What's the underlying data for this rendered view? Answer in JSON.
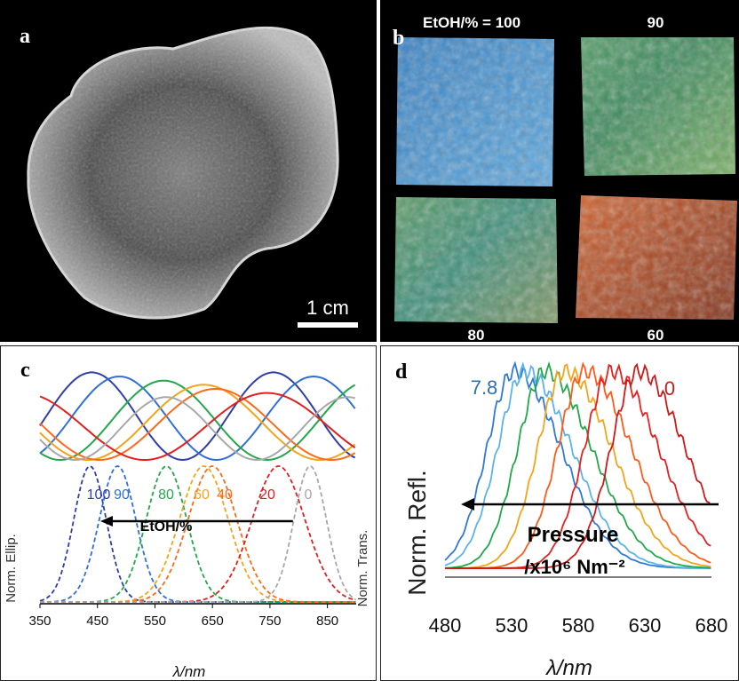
{
  "panel_a": {
    "label": "a",
    "scale_bar_label": "1 cm"
  },
  "panel_b": {
    "label": "b",
    "sample_labels": [
      "EtOH/% = 100",
      "90",
      "80",
      "60"
    ],
    "swatch_colors": [
      [
        "#2a78c0",
        "#5aa8e0",
        "#3a6fb8"
      ],
      [
        "#7ec57a",
        "#3a8a5c",
        "#b9d86a"
      ],
      [
        "#88b040",
        "#3a8f7a",
        "#d8a040"
      ],
      [
        "#c04520",
        "#e06a30",
        "#7a2a14"
      ]
    ]
  },
  "panel_c": {
    "label": "c"
  },
  "panel_d": {
    "label": "d"
  },
  "chart_data": [
    {
      "type": "line",
      "panel": "c",
      "xlabel": "λ/nm",
      "ylabel_left": "Norm. Ellip.",
      "ylabel_right": "Norm. Trans.",
      "xlim": [
        350,
        900
      ],
      "xticks": [
        350,
        450,
        550,
        650,
        750,
        850
      ],
      "annotation_text": "EtOH/%",
      "arrow": {
        "from": 790,
        "to": 455
      },
      "series": [
        {
          "name": "100",
          "color": "#2f3ea8",
          "ellip_min": 440,
          "peak": 437,
          "width": 40
        },
        {
          "name": "90",
          "color": "#2f6fd6",
          "ellip_min": 488,
          "peak": 485,
          "width": 45
        },
        {
          "name": "80",
          "color": "#21a84a",
          "ellip_min": 565,
          "peak": 570,
          "width": 50
        },
        {
          "name": "60",
          "color": "#f2a51a",
          "ellip_min": 635,
          "peak": 635,
          "width": 60
        },
        {
          "name": "40",
          "color": "#ff6a1a",
          "ellip_min": 655,
          "peak": 650,
          "width": 60
        },
        {
          "name": "20",
          "color": "#e02020",
          "ellip_min": 745,
          "peak": 765,
          "width": 65
        },
        {
          "name": "0",
          "color": "#a8a8a8",
          "ellip_min": 885,
          "peak": 820,
          "width": 40
        }
      ]
    },
    {
      "type": "line",
      "panel": "d",
      "xlabel": "λ/nm",
      "ylabel": "Norm. Refl.",
      "xlim": [
        480,
        680
      ],
      "xticks": [
        480,
        530,
        580,
        630,
        680
      ],
      "annotation_line1": "Pressure",
      "annotation_line2": "/x10⁶ Nm⁻²",
      "label_high": "7.8",
      "label_low": "0",
      "arrow": {
        "from": 672,
        "to": 492
      },
      "series": [
        {
          "peak": 532,
          "color": "#2f7ad6"
        },
        {
          "peak": 540,
          "color": "#5ab4ea"
        },
        {
          "peak": 555,
          "color": "#21a84a"
        },
        {
          "peak": 570,
          "color": "#f2a51a"
        },
        {
          "peak": 585,
          "color": "#ff5a1a"
        },
        {
          "peak": 605,
          "color": "#e82020"
        },
        {
          "peak": 625,
          "color": "#d01818"
        }
      ]
    }
  ]
}
